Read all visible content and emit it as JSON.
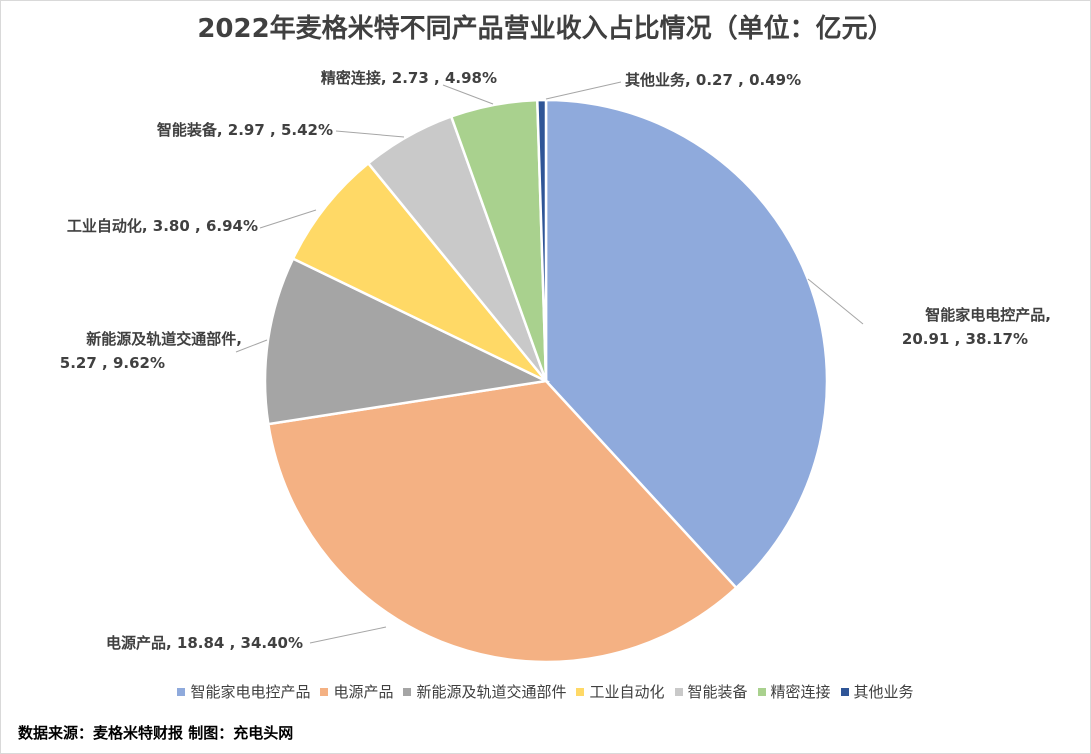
{
  "chart_data": {
    "type": "pie",
    "title": "2022年麦格米特不同产品营业收入占比情况（单位：亿元）",
    "slices": [
      {
        "name": "智能家电电控产品",
        "value": 20.91,
        "percent": "38.17%",
        "color": "#8faadc",
        "label_line1": "智能家电电控产品,",
        "label_line2": "20.91 , 38.17%"
      },
      {
        "name": "电源产品",
        "value": 18.84,
        "percent": "34.40%",
        "color": "#f4b183",
        "label_line1": "电源产品, 18.84 , 34.40%",
        "label_line2": ""
      },
      {
        "name": "新能源及轨道交通部件",
        "value": 5.27,
        "percent": "9.62%",
        "color": "#a5a5a5",
        "label_line1": "新能源及轨道交通部件,",
        "label_line2": "5.27 , 9.62%"
      },
      {
        "name": "工业自动化",
        "value": 3.8,
        "percent": "6.94%",
        "color": "#ffd966",
        "label_line1": "工业自动化, 3.80 , 6.94%",
        "label_line2": ""
      },
      {
        "name": "智能装备",
        "value": 2.97,
        "percent": "5.42%",
        "color": "#c9c9c9",
        "label_line1": "智能装备, 2.97 , 5.42%",
        "label_line2": ""
      },
      {
        "name": "精密连接",
        "value": 2.73,
        "percent": "4.98%",
        "color": "#a9d18e",
        "label_line1": "精密连接, 2.73 , 4.98%",
        "label_line2": ""
      },
      {
        "name": "其他业务",
        "value": 0.27,
        "percent": "0.49%",
        "color": "#2f5597",
        "label_line1": "其他业务, 0.27 , 0.49%",
        "label_line2": ""
      }
    ],
    "legend_position": "bottom"
  },
  "footer": {
    "source": "数据来源：麦格米特财报  制图：充电头网"
  }
}
